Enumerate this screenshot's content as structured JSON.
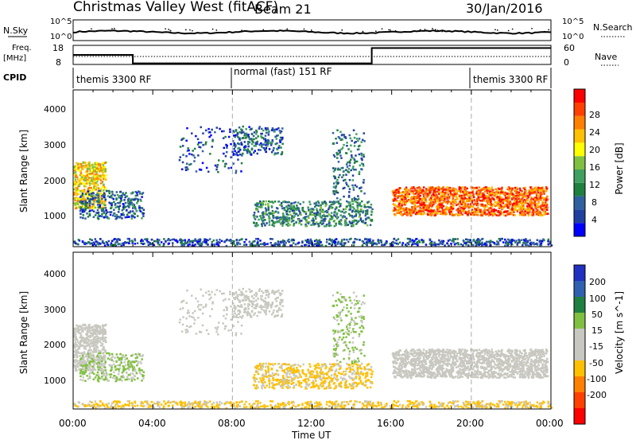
{
  "header": {
    "title": "Christmas Valley West (fitACF)",
    "beam": "Beam 21",
    "date": "30/Jan/2016"
  },
  "left_labels": {
    "nsky": "N.Sky",
    "freq": "Freq.",
    "mhz": "[MHz]",
    "cpid": "CPID"
  },
  "right_labels": {
    "nsearch": "N.Search",
    "nave": "Nave"
  },
  "cpid_segments": [
    {
      "label": "themis 3300 RF",
      "start_h": 0,
      "end_h": 8
    },
    {
      "label": "normal (fast) 151 RF",
      "start_h": 8,
      "end_h": 20
    },
    {
      "label": "themis 3300 RF",
      "start_h": 20,
      "end_h": 24
    }
  ],
  "colors": {
    "power_scale": [
      "#0000ff",
      "#2040a0",
      "#3060a0",
      "#208040",
      "#40a060",
      "#80c040",
      "#ffff00",
      "#ffc000",
      "#ff8000",
      "#ff4000",
      "#ff0000"
    ],
    "velocity_scale": [
      "#2030c0",
      "#3060b0",
      "#208040",
      "#80c040",
      "#c8c8c0",
      "#c8c8c0",
      "#ffc000",
      "#ff8000",
      "#ff4000",
      "#ff0000"
    ],
    "grey": "#c8c8c0"
  },
  "chart_data": [
    {
      "type": "line",
      "panel": "noise",
      "left_ticks": [
        "10^5",
        "10^0"
      ],
      "right_ticks": [
        "10^5",
        "10^0"
      ],
      "left_label": "N.Sky",
      "right_label": "N.Search"
    },
    {
      "type": "line",
      "panel": "frequency",
      "left_ticks": [
        "18",
        "8"
      ],
      "right_ticks": [
        "60",
        "0"
      ],
      "left_label": "Freq. [MHz]",
      "right_label": "Nave",
      "freq_steps": [
        {
          "h": 0,
          "v": 13
        },
        {
          "h": 3,
          "v": 13
        },
        {
          "h": 3,
          "v": 8.6
        },
        {
          "h": 15,
          "v": 8.6
        },
        {
          "h": 15,
          "v": 16.6
        },
        {
          "h": 24,
          "v": 16.6
        }
      ]
    },
    {
      "type": "heatmap",
      "panel": "power",
      "ylabel": "Slant Range [km]",
      "yticks": [
        "1000",
        "2000",
        "3000",
        "4000"
      ],
      "ylim": [
        200,
        4600
      ],
      "colorbar_label": "Power [dB]",
      "colorbar_ticks": [
        "4",
        "8",
        "12",
        "16",
        "20",
        "24",
        "28"
      ]
    },
    {
      "type": "heatmap",
      "panel": "velocity",
      "ylabel": "Slant Range [km]",
      "yticks": [
        "1000",
        "2000",
        "3000",
        "4000"
      ],
      "ylim": [
        200,
        4600
      ],
      "xlabel": "Time UT",
      "xticks": [
        "00:00",
        "04:00",
        "08:00",
        "12:00",
        "16:00",
        "20:00",
        "00:00"
      ],
      "colorbar_label": "Velocity [m s^-1]",
      "colorbar_ticks": [
        "200",
        "100",
        "50",
        "15",
        "-15",
        "-50",
        "-100",
        "-200"
      ]
    }
  ]
}
